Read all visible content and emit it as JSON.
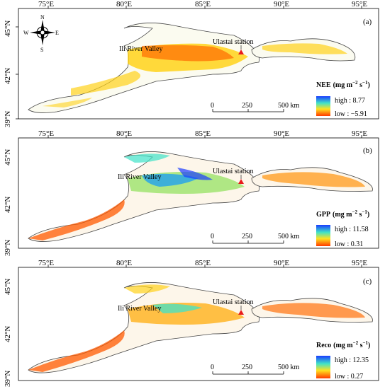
{
  "panels": [
    {
      "label": "(a)",
      "variable": "NEE",
      "units": "(mg m",
      "units_exp1": "−2",
      "units_mid": " s",
      "units_exp2": "−1",
      "units_end": ")",
      "high_label": "high : 8.77",
      "low_label": "low : −5.91",
      "high": 8.77,
      "low": -5.91
    },
    {
      "label": "(b)",
      "variable": "GPP",
      "units": "(mg m",
      "units_exp1": "−2",
      "units_mid": " s",
      "units_exp2": "−1",
      "units_end": ")",
      "high_label": "high : 11.58",
      "low_label": "low : 0.31",
      "high": 11.58,
      "low": 0.31
    },
    {
      "label": "(c)",
      "variable": "Reco",
      "units": "(mg m",
      "units_exp1": "−2",
      "units_mid": " s",
      "units_exp2": "−1",
      "units_end": ")",
      "high_label": "high : 12.35",
      "low_label": "low : 0.27",
      "high": 12.35,
      "low": 0.27
    }
  ],
  "longitude_ticks": [
    "75°E",
    "80°E",
    "85°E",
    "90°E",
    "95°E"
  ],
  "latitude_ticks": [
    "45°N",
    "42°N",
    "39°N"
  ],
  "scale_bar": {
    "zero": "0",
    "mid": "250",
    "end": "500 km"
  },
  "annotations": {
    "station": "Ulastai station",
    "valley": "Ili River Valley"
  },
  "north_arrow": {
    "n": "N",
    "s": "S",
    "e": "E",
    "w": "W"
  },
  "colors": {
    "high": "#1a3cff",
    "mid": "#3fe3c8",
    "low2": "#ffe21f",
    "low": "#ff3a00",
    "station": "#e81c1c"
  }
}
